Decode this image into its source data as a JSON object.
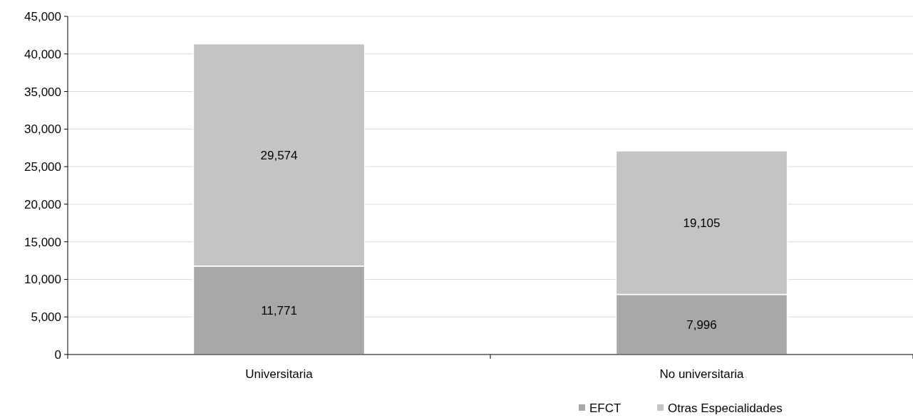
{
  "chart_data": {
    "type": "bar",
    "stacked": true,
    "categories": [
      "Universitaria",
      "No universitaria"
    ],
    "series": [
      {
        "name": "EFCT",
        "color": "#a8a8a8",
        "values": [
          11771,
          7996
        ],
        "value_labels": [
          "11,771",
          "7,996"
        ]
      },
      {
        "name": "Otras Especialidades",
        "color": "#c4c4c4",
        "values": [
          29574,
          19105
        ],
        "value_labels": [
          "29,574",
          "19,105"
        ]
      }
    ],
    "ylim": [
      0,
      45000
    ],
    "yticks": [
      {
        "value": 0,
        "label": "0"
      },
      {
        "value": 5000,
        "label": "5,000"
      },
      {
        "value": 10000,
        "label": "10,000"
      },
      {
        "value": 15000,
        "label": "15,000"
      },
      {
        "value": 20000,
        "label": "20,000"
      },
      {
        "value": 25000,
        "label": "25,000"
      },
      {
        "value": 30000,
        "label": "30,000"
      },
      {
        "value": 35000,
        "label": "35,000"
      },
      {
        "value": 40000,
        "label": "40,000"
      },
      {
        "value": 45000,
        "label": "45,000"
      }
    ],
    "grid": "y",
    "legend": "bottom"
  }
}
